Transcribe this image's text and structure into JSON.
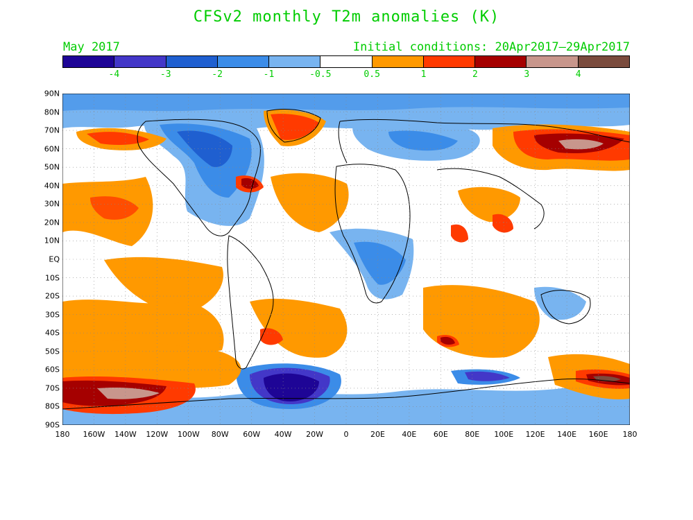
{
  "title": "CFSv2 monthly T2m anomalies (K)",
  "subtitle_left": "May 2017",
  "subtitle_right": "Initial conditions: 20Apr2017–29Apr2017",
  "text_color": "#00cc00",
  "colorbar": {
    "colors": [
      "#1e0596",
      "#4337c8",
      "#1f5fd0",
      "#3b8ce8",
      "#78b4f0",
      "#ffffff",
      "#ff9900",
      "#ff3a00",
      "#a50000",
      "#c8968c",
      "#7a4b3d"
    ],
    "labels": [
      "-4",
      "-3",
      "-2",
      "-1",
      "-0.5",
      "0.5",
      "1",
      "2",
      "3",
      "4"
    ]
  },
  "map": {
    "lat_labels": [
      "90N",
      "80N",
      "70N",
      "60N",
      "50N",
      "40N",
      "30N",
      "20N",
      "10N",
      "EQ",
      "10S",
      "20S",
      "30S",
      "40S",
      "50S",
      "60S",
      "70S",
      "80S",
      "90S"
    ],
    "lon_labels": [
      "180",
      "160W",
      "140W",
      "120W",
      "100W",
      "80W",
      "60W",
      "40W",
      "20W",
      "0",
      "20E",
      "40E",
      "60E",
      "80E",
      "100E",
      "120E",
      "140E",
      "160E",
      "180"
    ]
  }
}
